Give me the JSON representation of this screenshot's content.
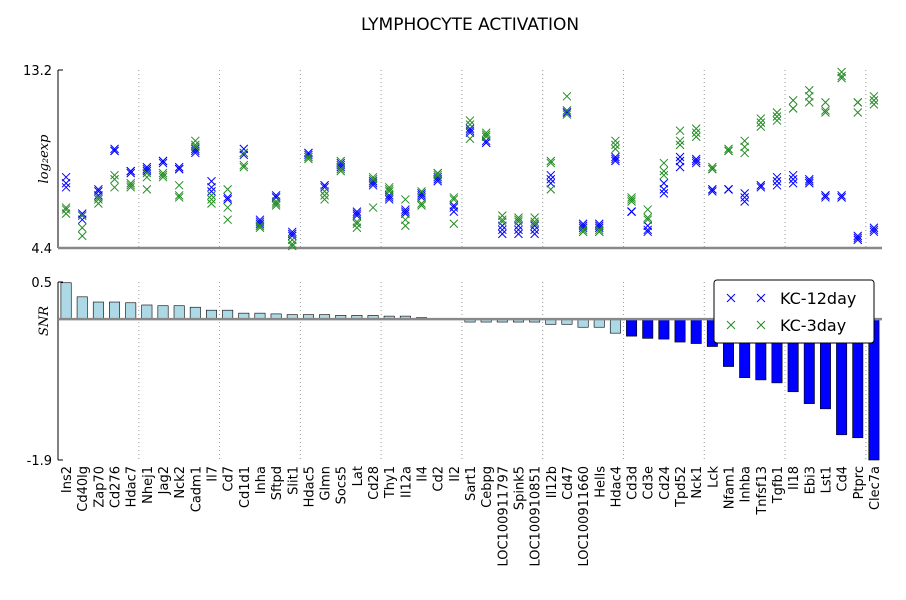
{
  "chart_data": [
    {
      "type": "scatter",
      "title": "LYMPHOCYTE ACTIVATION",
      "ylabel": "log₂exp",
      "ylim": [
        4.4,
        13.2
      ],
      "yticks": [
        13.2,
        4.4
      ],
      "legend": "upper right",
      "series": [
        {
          "name": "KC-12day",
          "color": "#0000ff",
          "values": [
            [
              7.9,
              7.6,
              7.4
            ],
            [
              6.1,
              6.0,
              5.8
            ],
            [
              7.3,
              7.2,
              7.0
            ],
            [
              9.3,
              9.2,
              9.2
            ],
            [
              8.2,
              8.1,
              8.2
            ],
            [
              8.4,
              8.3,
              8.2
            ],
            [
              8.7,
              8.6,
              8.7
            ],
            [
              8.4,
              8.3,
              8.3
            ],
            [
              9.3,
              9.2,
              9.1
            ],
            [
              7.7,
              7.4,
              7.2
            ],
            [
              6.9,
              6.8,
              6.8
            ],
            [
              9.3,
              9.1,
              9.0
            ],
            [
              5.8,
              5.6,
              5.7
            ],
            [
              7.0,
              6.9,
              6.9
            ],
            [
              5.2,
              5.0,
              5.1
            ],
            [
              9.1,
              9.0,
              9.1
            ],
            [
              7.5,
              7.4,
              7.5
            ],
            [
              8.6,
              8.4,
              8.5
            ],
            [
              6.2,
              6.0,
              6.1
            ],
            [
              7.7,
              7.5,
              7.6
            ],
            [
              7.0,
              6.8,
              6.9
            ],
            [
              6.3,
              6.1,
              6.2
            ],
            [
              7.1,
              6.9,
              7.0
            ],
            [
              7.9,
              7.7,
              7.8
            ],
            [
              6.5,
              6.2,
              6.4
            ],
            [
              10.3,
              10.2,
              10.1
            ],
            [
              9.7,
              9.6,
              9.6
            ],
            [
              5.5,
              5.3,
              5.1
            ],
            [
              5.5,
              5.3,
              5.1
            ],
            [
              5.5,
              5.3,
              5.1
            ],
            [
              8.0,
              7.6,
              7.8
            ],
            [
              11.2,
              11.1,
              11.1
            ],
            [
              5.6,
              5.4,
              5.5
            ],
            [
              5.6,
              5.4,
              5.5
            ],
            [
              8.9,
              8.7,
              8.8
            ],
            [
              6.2,
              6.2,
              6.2
            ],
            [
              5.5,
              5.2,
              5.3
            ],
            [
              7.6,
              7.3,
              7.1
            ],
            [
              8.9,
              8.7,
              8.4
            ],
            [
              8.8,
              8.6,
              8.7
            ],
            [
              7.3,
              7.3,
              7.2
            ],
            [
              7.3,
              7.3,
              7.3
            ],
            [
              7.1,
              6.9,
              6.7
            ],
            [
              7.5,
              7.5,
              7.4
            ],
            [
              7.9,
              7.7,
              7.5
            ],
            [
              8.0,
              7.8,
              7.6
            ],
            [
              7.8,
              7.6,
              7.7
            ],
            [
              7.0,
              7.0,
              6.9
            ],
            [
              7.0,
              6.9,
              6.9
            ],
            [
              5.0,
              4.8,
              4.9
            ],
            [
              5.4,
              5.2,
              5.3
            ]
          ]
        },
        {
          "name": "KC-3day",
          "color": "#228b22",
          "values": [
            [
              6.4,
              6.3,
              6.1
            ],
            [
              5.4,
              5.0,
              6.0
            ],
            [
              6.9,
              6.6,
              6.8
            ],
            [
              8.0,
              7.8,
              7.4
            ],
            [
              7.6,
              7.4,
              7.5
            ],
            [
              7.9,
              7.3,
              8.1
            ],
            [
              8.1,
              7.9,
              8.0
            ],
            [
              7.5,
              6.9,
              7.0
            ],
            [
              9.7,
              9.5,
              9.4
            ],
            [
              7.0,
              6.6,
              6.8
            ],
            [
              7.3,
              6.4,
              5.8
            ],
            [
              8.5,
              9.1,
              8.4
            ],
            [
              5.5,
              5.5,
              5.4
            ],
            [
              6.7,
              6.5,
              6.6
            ],
            [
              4.8,
              4.5,
              4.6
            ],
            [
              8.9,
              8.9,
              8.8
            ],
            [
              7.2,
              6.8,
              7.0
            ],
            [
              8.7,
              8.2,
              8.3
            ],
            [
              5.7,
              5.4,
              5.6
            ],
            [
              7.9,
              6.4,
              7.8
            ],
            [
              7.4,
              7.2,
              7.3
            ],
            [
              6.8,
              5.8,
              5.5
            ],
            [
              7.2,
              6.5,
              6.6
            ],
            [
              8.1,
              8.0,
              8.1
            ],
            [
              6.9,
              5.6,
              6.8
            ],
            [
              10.7,
              9.8,
              10.5
            ],
            [
              10.1,
              10.0,
              9.9
            ],
            [
              6.0,
              5.7,
              5.8
            ],
            [
              5.9,
              5.7,
              5.8
            ],
            [
              5.9,
              5.6,
              5.7
            ],
            [
              8.7,
              7.3,
              8.6
            ],
            [
              11.9,
              11.2,
              11.0
            ],
            [
              5.2,
              5.2,
              5.3
            ],
            [
              5.2,
              5.3,
              5.2
            ],
            [
              9.7,
              9.3,
              9.5
            ],
            [
              6.9,
              6.7,
              6.8
            ],
            [
              6.3,
              5.8,
              5.9
            ],
            [
              8.6,
              8.0,
              8.2
            ],
            [
              10.2,
              9.7,
              9.5
            ],
            [
              10.3,
              9.9,
              10.1
            ],
            [
              8.4,
              8.3,
              8.3
            ],
            [
              9.3,
              9.2,
              9.2
            ],
            [
              9.7,
              9.4,
              9.1
            ],
            [
              10.8,
              10.4,
              10.6
            ],
            [
              11.1,
              10.7,
              10.9
            ],
            [
              11.7,
              11.3,
              11.3
            ],
            [
              12.2,
              11.9,
              11.6
            ],
            [
              11.6,
              11.1,
              11.2
            ],
            [
              13.1,
              12.9,
              12.8
            ],
            [
              11.6,
              11.1,
              11.6
            ],
            [
              11.9,
              11.5,
              11.7
            ]
          ]
        }
      ]
    },
    {
      "type": "bar",
      "ylabel": "SNR",
      "ylim": [
        -1.9,
        0.5
      ],
      "yticks": [
        0.5,
        -1.9
      ],
      "categories": [
        "Ins2",
        "Cd40lg",
        "Zap70",
        "Cd276",
        "Hdac7",
        "Nhej1",
        "Jag2",
        "Nck2",
        "Cadm1",
        "Il7",
        "Cd7",
        "Cd1d1",
        "Inha",
        "Sftpd",
        "Slit1",
        "Hdac5",
        "Glmn",
        "Socs5",
        "Lat",
        "Cd28",
        "Thy1",
        "Il12a",
        "Il4",
        "Cd2",
        "Il2",
        "Sart1",
        "Cebpg",
        "LOC100911797",
        "Spink5",
        "LOC100910851",
        "Il12b",
        "Cd47",
        "LOC100911660",
        "Hells",
        "Hdac4",
        "Cd3d",
        "Cd3e",
        "Cd24",
        "Tpd52",
        "Nck1",
        "Lck",
        "Nfam1",
        "Inhba",
        "Tnfsf13",
        "Tgfb1",
        "Il18",
        "Ebi3",
        "Lst1",
        "Cd4",
        "Ptprc",
        "Clec7a"
      ],
      "values": [
        0.49,
        0.3,
        0.23,
        0.23,
        0.22,
        0.19,
        0.18,
        0.18,
        0.16,
        0.12,
        0.12,
        0.08,
        0.08,
        0.07,
        0.06,
        0.06,
        0.06,
        0.05,
        0.05,
        0.05,
        0.04,
        0.04,
        0.02,
        0.01,
        0.01,
        -0.04,
        -0.04,
        -0.04,
        -0.04,
        -0.04,
        -0.07,
        -0.07,
        -0.11,
        -0.11,
        -0.19,
        -0.23,
        -0.26,
        -0.27,
        -0.31,
        -0.33,
        -0.37,
        -0.64,
        -0.79,
        -0.82,
        -0.86,
        -0.98,
        -1.14,
        -1.21,
        -1.56,
        -1.6,
        -1.9
      ],
      "colors": [
        "#add8e6",
        "#0000ff"
      ],
      "color_index": [
        0,
        0,
        0,
        0,
        0,
        0,
        0,
        0,
        0,
        0,
        0,
        0,
        0,
        0,
        0,
        0,
        0,
        0,
        0,
        0,
        0,
        0,
        0,
        0,
        0,
        0,
        0,
        0,
        0,
        0,
        0,
        0,
        0,
        0,
        0,
        1,
        1,
        1,
        1,
        1,
        1,
        1,
        1,
        1,
        1,
        1,
        1,
        1,
        1,
        1,
        1
      ]
    }
  ]
}
